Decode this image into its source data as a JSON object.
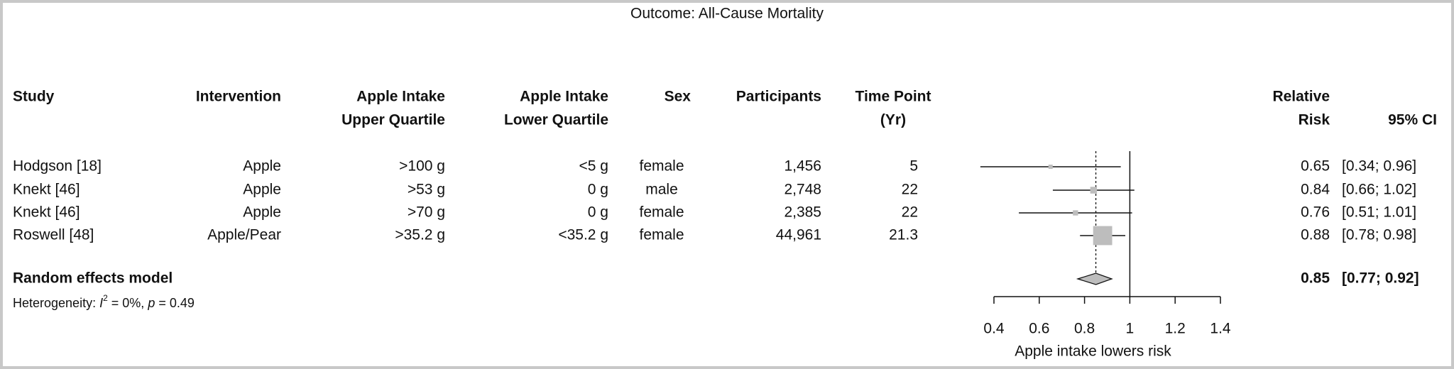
{
  "title": "Outcome: All-Cause Mortality",
  "chart_data": {
    "type": "forest",
    "headers": [
      [
        "Study"
      ],
      [
        "Intervention"
      ],
      [
        "Apple Intake",
        "Upper Quartile"
      ],
      [
        "Apple Intake",
        "Lower Quartile"
      ],
      [
        "Sex"
      ],
      [
        "Participants"
      ],
      [
        "Time Point",
        "(Yr)"
      ]
    ],
    "rr_header": [
      "Relative",
      "Risk"
    ],
    "ci_header": "95% CI",
    "rows": [
      [
        "Hodgson [18]",
        "Apple",
        ">100 g",
        "<5 g",
        "female",
        "1,456",
        "5"
      ],
      [
        "Knekt [46]",
        "Apple",
        ">53 g",
        "0 g",
        "male",
        "2,748",
        "22"
      ],
      [
        "Knekt [46]",
        "Apple",
        ">70 g",
        "0 g",
        "female",
        "2,385",
        "22"
      ],
      [
        "Roswell [48]",
        "Apple/Pear",
        ">35.2 g",
        "<35.2 g",
        "female",
        "44,961",
        "21.3"
      ]
    ],
    "estimates": [
      0.65,
      0.84,
      0.76,
      0.88
    ],
    "ci_low": [
      0.34,
      0.66,
      0.51,
      0.78
    ],
    "ci_high": [
      0.96,
      1.02,
      1.01,
      0.98
    ],
    "ci_labels": [
      "[0.34; 0.96]",
      "[0.66; 1.02]",
      "[0.51; 1.01]",
      "[0.78; 0.98]"
    ],
    "weights": [
      4,
      10,
      6,
      80
    ],
    "summary": {
      "label": "Random effects model",
      "estimate": 0.85,
      "ci_low": 0.77,
      "ci_high": 0.92,
      "ci_label": "[0.77; 0.92]"
    },
    "heterogeneity": {
      "prefix": "Heterogeneity: ",
      "i": "I",
      "sup": "2",
      "middle": " = 0%, ",
      "p": "p",
      "tail": " = 0.49"
    },
    "xlim": [
      0.4,
      1.4
    ],
    "xticks": [
      0.4,
      0.6,
      0.8,
      1,
      1.2,
      1.4
    ],
    "null_line": 1,
    "xlabel": "Apple intake lowers risk",
    "square_color": "#bdbdbd"
  }
}
